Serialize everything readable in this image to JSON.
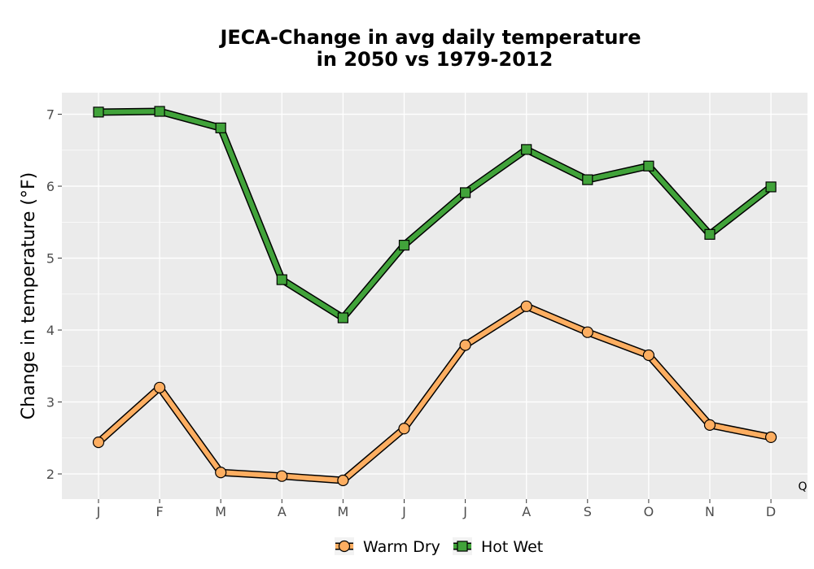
{
  "chart_data": {
    "type": "line",
    "title": [
      "JECA-Change in avg daily temperature",
      "in 2050 vs 1979-2012"
    ],
    "xlabel": "",
    "ylabel": "Change in temperature (°F)",
    "categories": [
      "J",
      "F",
      "M",
      "A",
      "M",
      "J",
      "J",
      "A",
      "S",
      "O",
      "N",
      "D"
    ],
    "ylim": [
      1.65,
      7.3
    ],
    "yticks": [
      2,
      3,
      4,
      5,
      6,
      7
    ],
    "grid": true,
    "legend_position": "bottom",
    "annotation": "Q",
    "series": [
      {
        "name": "Warm Dry",
        "marker": "circle",
        "color": "#fdae61",
        "values": [
          2.44,
          3.2,
          2.02,
          1.97,
          1.91,
          2.63,
          3.79,
          4.33,
          3.97,
          3.65,
          2.68,
          2.51
        ]
      },
      {
        "name": "Hot Wet",
        "marker": "square",
        "color": "#41a33a",
        "values": [
          7.03,
          7.04,
          6.81,
          4.7,
          4.17,
          5.18,
          5.91,
          6.51,
          6.09,
          6.28,
          5.33,
          5.99
        ]
      }
    ]
  },
  "colors": {
    "panel_background": "#ebebeb",
    "grid": "#ffffff",
    "outline": "#000000"
  }
}
